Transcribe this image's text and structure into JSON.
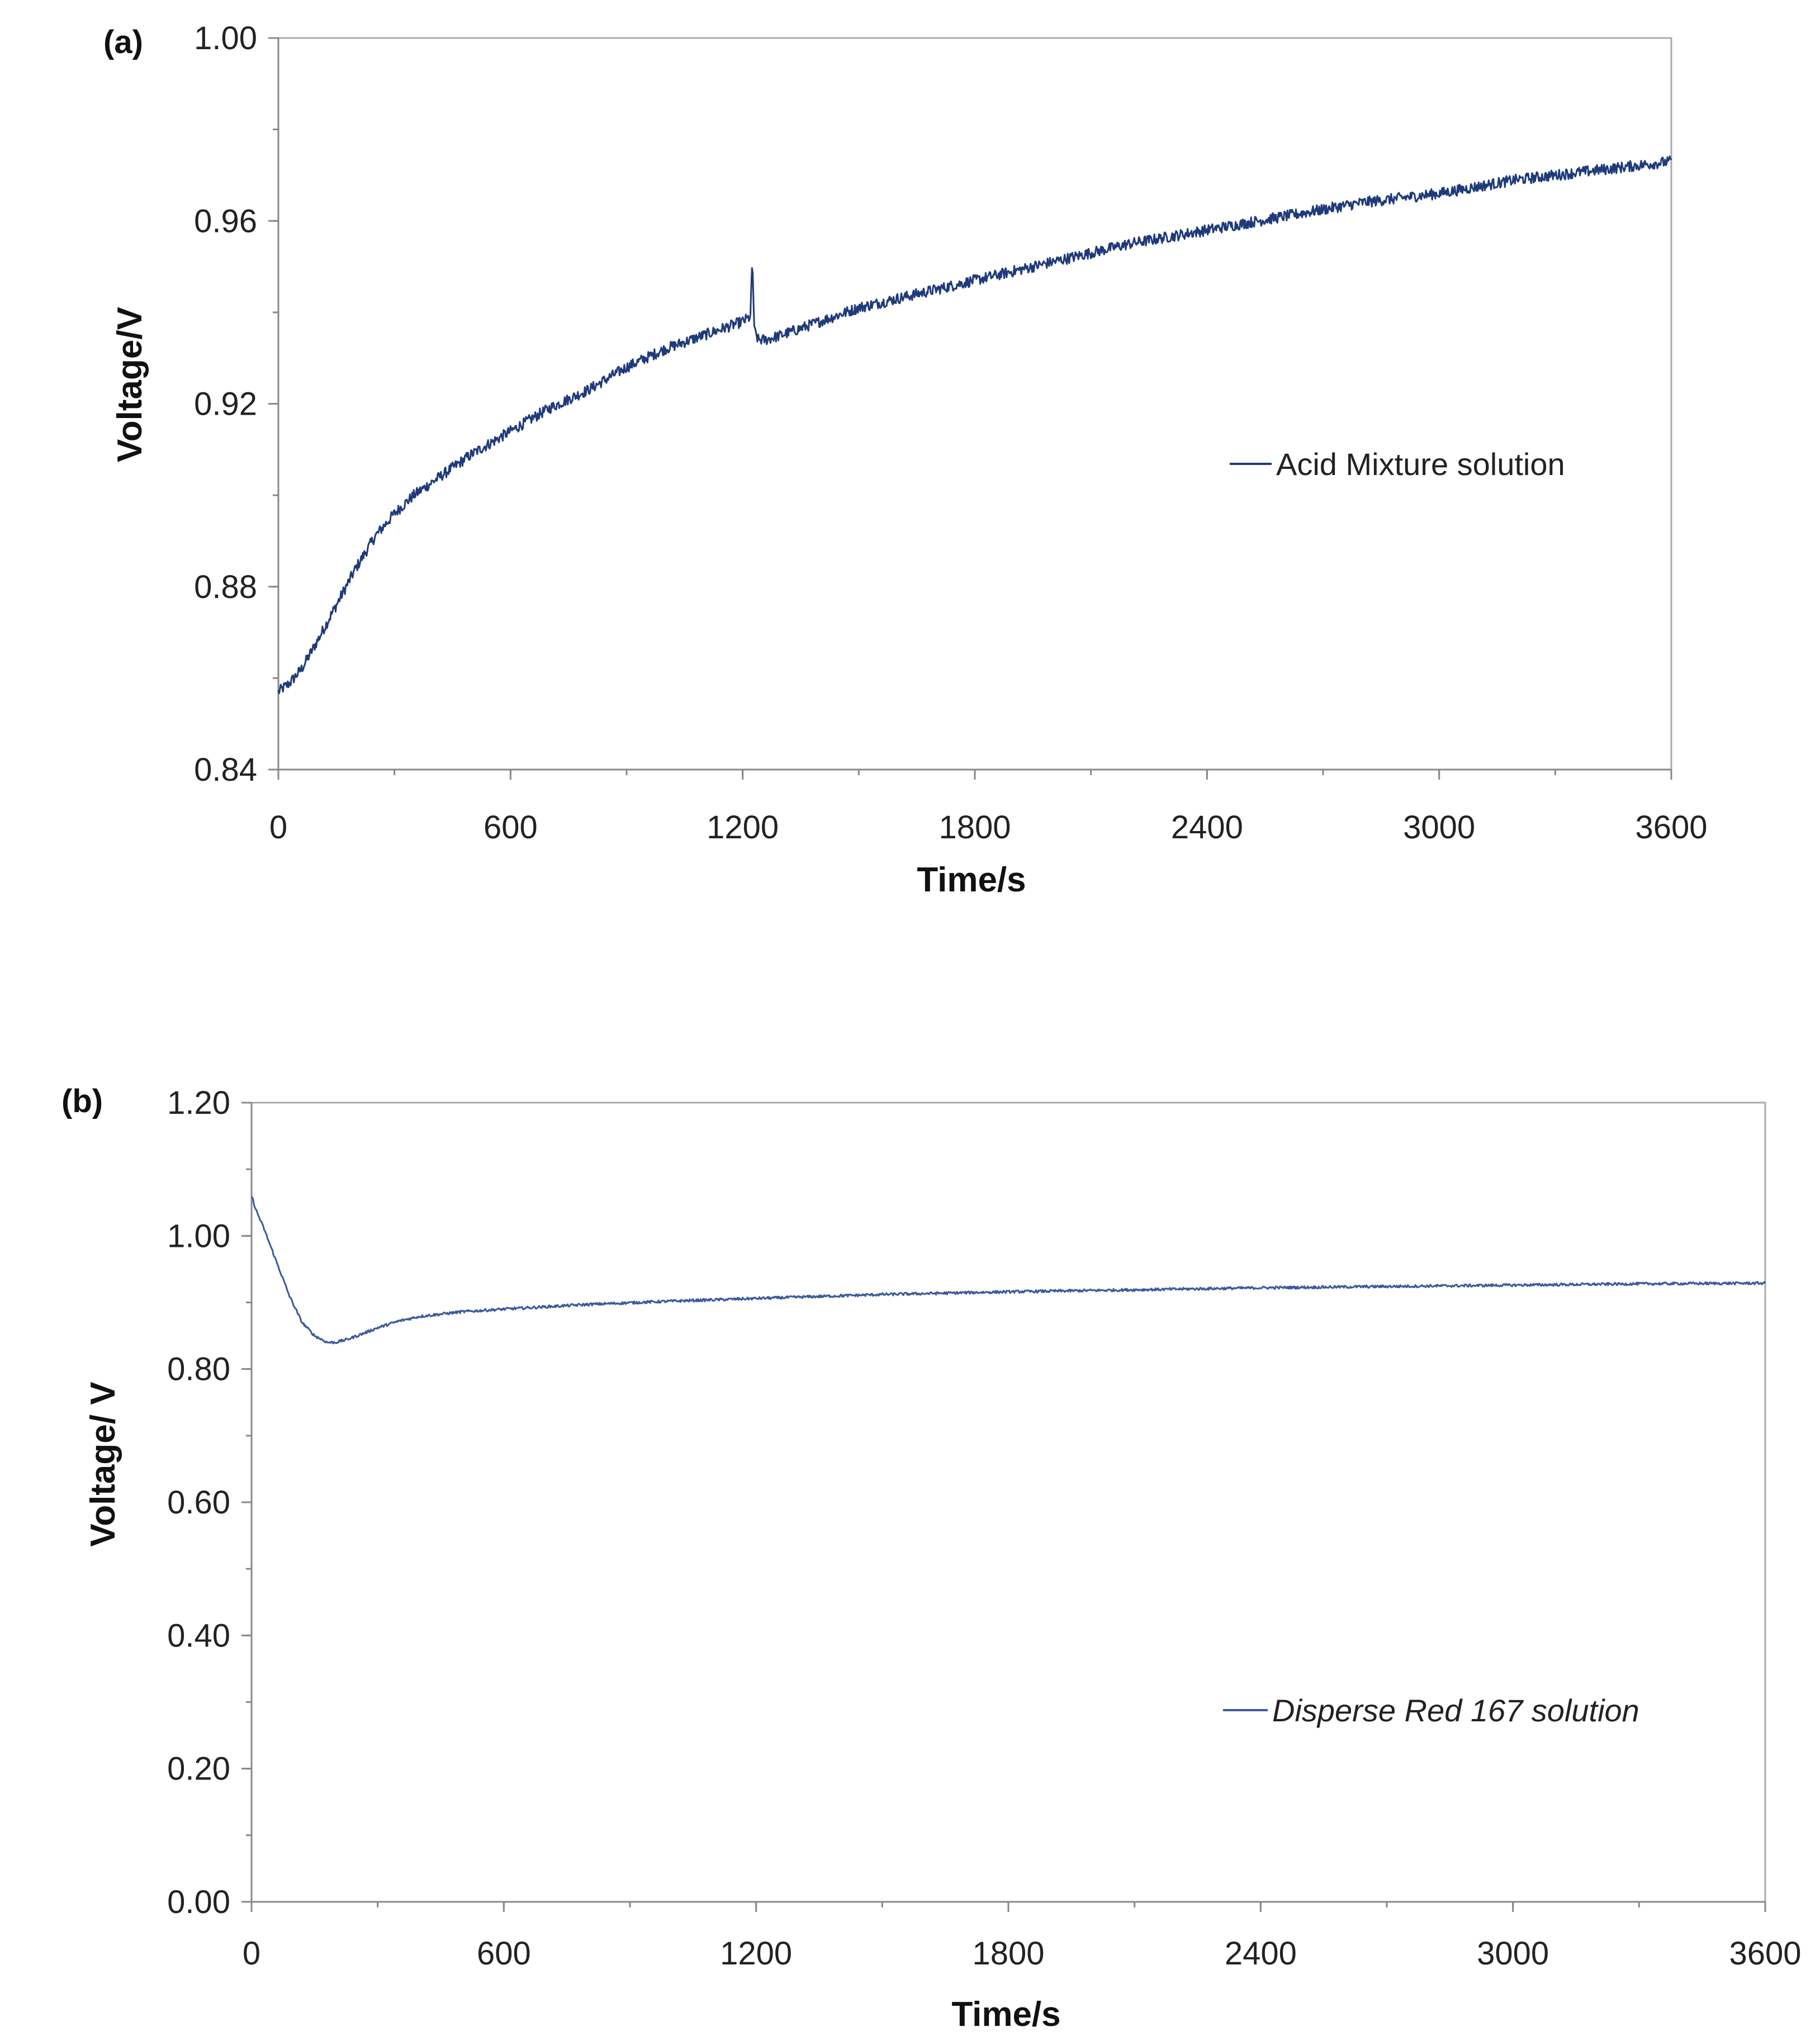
{
  "chart_data": [
    {
      "panel_label": "(a)",
      "type": "line",
      "xlabel": "Time/s",
      "ylabel": "Voltage/V",
      "xlim": [
        0,
        3600
      ],
      "ylim": [
        0.84,
        1.0
      ],
      "xticks": [
        0,
        600,
        1200,
        1800,
        2400,
        3000,
        3600
      ],
      "xtick_labels": [
        "0",
        "600",
        "1200",
        "1800",
        "2400",
        "3000",
        "3600"
      ],
      "yticks": [
        0.84,
        0.88,
        0.92,
        0.96,
        1.0
      ],
      "ytick_labels": [
        "0.84",
        "0.88",
        "0.92",
        "0.96",
        "1.00"
      ],
      "y_minor_step": 0.02,
      "x_minor_step": 300,
      "noise": 0.0012,
      "legend_position": "right-middle",
      "legend_italic": false,
      "series": [
        {
          "name": "Acid Mixture solution",
          "color": "#1f3a7a",
          "x": [
            0,
            30,
            60,
            100,
            150,
            200,
            250,
            300,
            350,
            400,
            450,
            500,
            600,
            700,
            800,
            900,
            1000,
            1100,
            1200,
            1220,
            1225,
            1230,
            1240,
            1260,
            1300,
            1400,
            1500,
            1600,
            1800,
            2000,
            2200,
            2400,
            2600,
            2800,
            3000,
            3200,
            3400,
            3600
          ],
          "y": [
            0.857,
            0.859,
            0.862,
            0.868,
            0.876,
            0.884,
            0.891,
            0.896,
            0.9,
            0.903,
            0.906,
            0.909,
            0.914,
            0.919,
            0.923,
            0.928,
            0.932,
            0.935,
            0.938,
            0.939,
            0.952,
            0.936,
            0.934,
            0.934,
            0.935,
            0.938,
            0.941,
            0.943,
            0.947,
            0.951,
            0.955,
            0.958,
            0.961,
            0.964,
            0.966,
            0.969,
            0.971,
            0.973
          ]
        }
      ]
    },
    {
      "panel_label": "(b)",
      "type": "line",
      "xlabel": "Time/s",
      "ylabel": "Voltage/ V",
      "xlim": [
        0,
        3600
      ],
      "ylim": [
        0.0,
        1.2
      ],
      "xticks": [
        0,
        600,
        1200,
        1800,
        2400,
        3000,
        3600
      ],
      "xtick_labels": [
        "0",
        "600",
        "1200",
        "1800",
        "2400",
        "3000",
        "3600"
      ],
      "yticks": [
        0.0,
        0.2,
        0.4,
        0.6,
        0.8,
        1.0,
        1.2
      ],
      "ytick_labels": [
        "0.00",
        "0.20",
        "0.40",
        "0.60",
        "0.80",
        "1.00",
        "1.20"
      ],
      "y_minor_step": 0.1,
      "x_minor_step": 300,
      "noise": 0.002,
      "legend_position": "right-lower",
      "legend_italic": true,
      "series": [
        {
          "name": "Disperse Red 167 solution",
          "color": "#3a5a9a",
          "x": [
            0,
            10,
            30,
            60,
            90,
            120,
            150,
            180,
            200,
            230,
            260,
            300,
            350,
            400,
            500,
            600,
            800,
            1000,
            1200,
            1500,
            1800,
            2100,
            2400,
            2700,
            3000,
            3300,
            3600
          ],
          "y": [
            1.06,
            1.04,
            1.01,
            0.96,
            0.91,
            0.87,
            0.85,
            0.84,
            0.84,
            0.845,
            0.852,
            0.862,
            0.872,
            0.879,
            0.886,
            0.89,
            0.897,
            0.902,
            0.906,
            0.912,
            0.916,
            0.919,
            0.922,
            0.924,
            0.926,
            0.928,
            0.929
          ]
        }
      ]
    }
  ]
}
